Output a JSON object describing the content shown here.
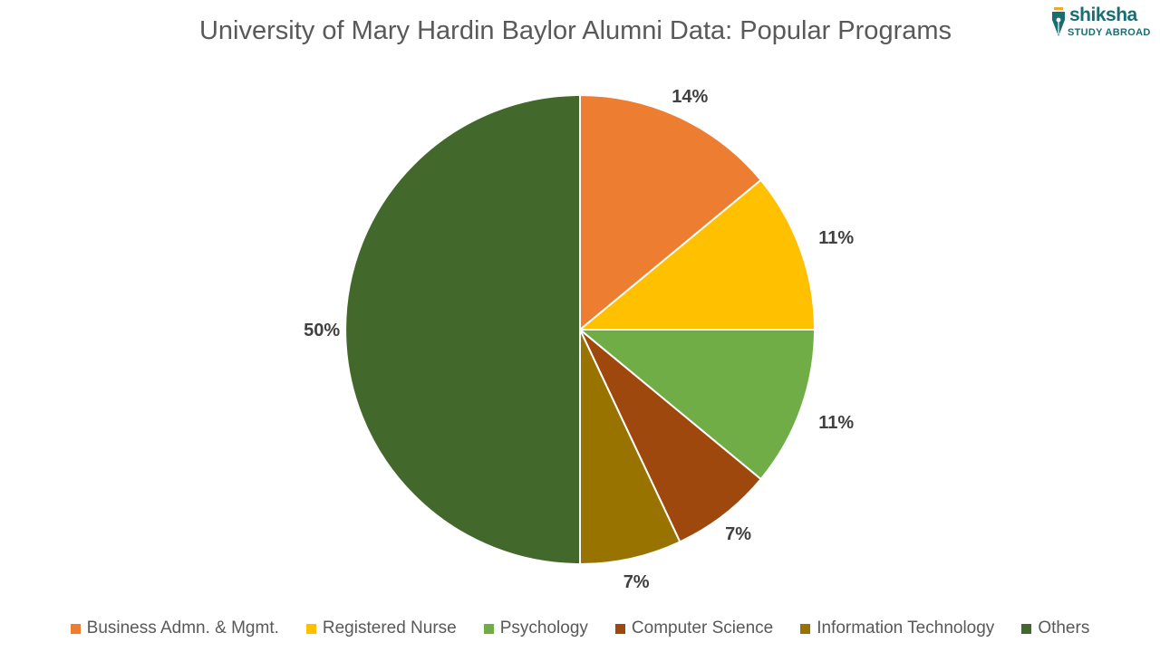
{
  "logo": {
    "brand": "shiksha",
    "tagline": "STUDY ABROAD",
    "color": "#1a6e73",
    "accent_color": "#f0a830"
  },
  "chart_data": {
    "type": "pie",
    "title": "University of Mary Hardin Baylor  Alumni Data: Popular Programs",
    "categories": [
      "Business Admn. & Mgmt.",
      "Registered Nurse",
      "Psychology",
      "Computer Science",
      "Information Technology",
      "Others"
    ],
    "values": [
      14,
      11,
      11,
      7,
      7,
      50
    ],
    "labels": [
      "14%",
      "11%",
      "11%",
      "7%",
      "7%",
      "50%"
    ],
    "colors": [
      "#ed7d31",
      "#ffc000",
      "#70ad47",
      "#9e480e",
      "#997300",
      "#43682b"
    ],
    "start_angle": "12 o'clock",
    "direction": "clockwise",
    "legend_position": "bottom"
  }
}
